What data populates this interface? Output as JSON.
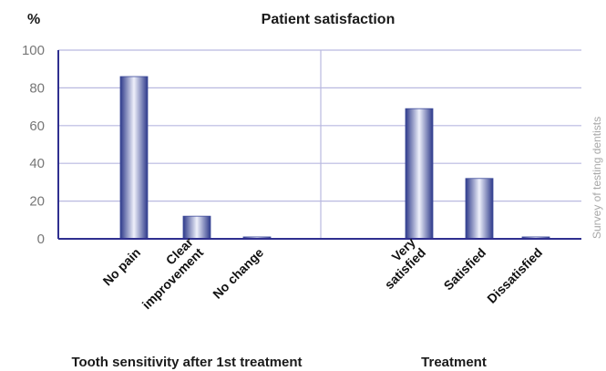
{
  "chart_data": {
    "type": "bar",
    "title": "Patient satisfaction",
    "ylabel": "%",
    "ylim": [
      0,
      100
    ],
    "yticks": [
      0,
      20,
      40,
      60,
      80,
      100
    ],
    "grid": true,
    "source": "Survey of testing dentists",
    "bar_color": "#3d4a9a",
    "axis_color": "#2f2f8f",
    "grid_color": "#b9b9e0",
    "panels": [
      {
        "xlabel": "Tooth sensitivity after 1st treatment",
        "categories": [
          [
            "No pain"
          ],
          [
            "Clear",
            "improvement"
          ],
          [
            "No change"
          ]
        ],
        "values": [
          86,
          12,
          1
        ]
      },
      {
        "xlabel": "Treatment",
        "categories": [
          [
            "Very",
            "satisfied"
          ],
          [
            "Satisfied"
          ],
          [
            "Dissatisfied"
          ]
        ],
        "values": [
          69,
          32,
          1
        ]
      }
    ]
  }
}
